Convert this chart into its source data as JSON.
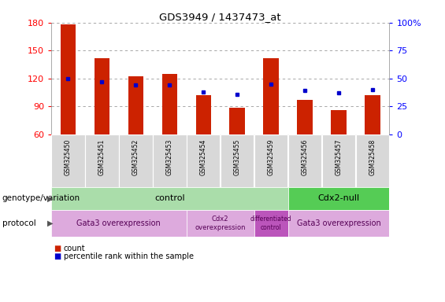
{
  "title": "GDS3949 / 1437473_at",
  "samples": [
    "GSM325450",
    "GSM325451",
    "GSM325452",
    "GSM325453",
    "GSM325454",
    "GSM325455",
    "GSM325459",
    "GSM325456",
    "GSM325457",
    "GSM325458"
  ],
  "counts": [
    178,
    142,
    122,
    125,
    102,
    89,
    142,
    97,
    86,
    102
  ],
  "percentile_ranks": [
    50,
    47,
    44,
    44,
    38,
    36,
    45,
    39,
    37,
    40
  ],
  "ylim_left": [
    60,
    180
  ],
  "ylim_right": [
    0,
    100
  ],
  "yticks_left": [
    60,
    90,
    120,
    150,
    180
  ],
  "yticks_right": [
    0,
    25,
    50,
    75,
    100
  ],
  "bar_color": "#cc2200",
  "dot_color": "#0000cc",
  "grid_color": "#999999",
  "background_color": "#ffffff",
  "tick_bg_color": "#d8d8d8",
  "genotype_row": {
    "control_color": "#aaddaa",
    "cdx2null_color": "#55cc55",
    "control_label": "control",
    "cdx2null_label": "Cdx2-null",
    "control_cols": [
      0,
      6
    ],
    "cdx2null_cols": [
      7,
      9
    ]
  },
  "protocol_row": {
    "gata3_color": "#ddaadd",
    "cdx2_color": "#ddaadd",
    "diff_color": "#bb55bb",
    "gata3_1_label": "Gata3 overexpression",
    "cdx2_label": "Cdx2\noverexpression",
    "diff_label": "differentiated\ncontrol",
    "gata3_2_label": "Gata3 overexpression",
    "gata3_1_cols": [
      0,
      3
    ],
    "cdx2_cols": [
      4,
      5
    ],
    "diff_cols": [
      6,
      6
    ],
    "gata3_2_cols": [
      7,
      9
    ]
  },
  "legend": {
    "count_label": "count",
    "pct_label": "percentile rank within the sample"
  }
}
